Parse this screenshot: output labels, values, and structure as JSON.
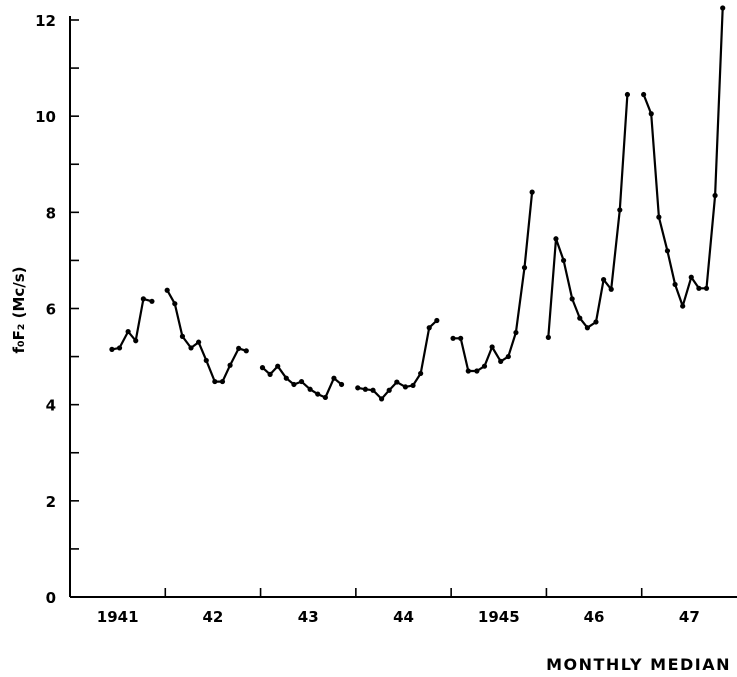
{
  "chart_data": {
    "type": "line",
    "title": "",
    "ylabel": "f₀F₂ (Mc/s)",
    "xlabel": "MONTHLY MEDIAN",
    "ylim": [
      0,
      12
    ],
    "yticks": [
      0,
      2,
      4,
      6,
      8,
      10,
      12
    ],
    "y_minor_ticks": [
      1,
      3,
      5,
      7,
      9,
      11
    ],
    "x_tick_labels": [
      "1941",
      "42",
      "43",
      "44",
      "1945",
      "46",
      "47"
    ],
    "x_tick_values": [
      1941,
      1942,
      1943,
      1944,
      1945,
      1946,
      1947
    ],
    "x_year_boundaries": [
      1941.5,
      1942.5,
      1943.5,
      1944.5,
      1945.5,
      1946.5
    ],
    "xlim": [
      1940.5,
      1947.5
    ],
    "grid": false,
    "series": [
      {
        "segments": [
          {
            "x": [
              1940.94,
              1941.02,
              1941.11,
              1941.19,
              1941.27,
              1941.36
            ],
            "y": [
              5.15,
              5.18,
              5.52,
              5.33,
              6.2,
              6.15
            ]
          },
          {
            "x": [
              1941.52,
              1941.6,
              1941.68,
              1941.77,
              1941.85,
              1941.93,
              1942.02,
              1942.1,
              1942.18,
              1942.27,
              1942.35
            ],
            "y": [
              6.38,
              6.1,
              5.42,
              5.18,
              5.3,
              4.92,
              4.48,
              4.48,
              4.82,
              5.17,
              5.12
            ]
          },
          {
            "x": [
              1942.52,
              1942.6,
              1942.68,
              1942.77,
              1942.85,
              1942.93,
              1943.02,
              1943.1,
              1943.18,
              1943.27,
              1943.35
            ],
            "y": [
              4.77,
              4.63,
              4.8,
              4.55,
              4.42,
              4.48,
              4.32,
              4.22,
              4.15,
              4.55,
              4.42
            ]
          },
          {
            "x": [
              1943.52,
              1943.6,
              1943.68,
              1943.77,
              1943.85,
              1943.93,
              1944.02,
              1944.1,
              1944.18,
              1944.27,
              1944.35
            ],
            "y": [
              4.35,
              4.32,
              4.3,
              4.12,
              4.3,
              4.47,
              4.37,
              4.4,
              4.65,
              5.6,
              5.75
            ]
          },
          {
            "x": [
              1944.52,
              1944.6,
              1944.68,
              1944.77,
              1944.85,
              1944.93,
              1945.02,
              1945.1,
              1945.18,
              1945.27,
              1945.35
            ],
            "y": [
              5.38,
              5.38,
              4.7,
              4.7,
              4.8,
              5.2,
              4.9,
              5.0,
              5.5,
              6.85,
              8.42
            ]
          },
          {
            "x": [
              1945.52,
              1945.6,
              1945.68,
              1945.77,
              1945.85,
              1945.93,
              1946.02,
              1946.1,
              1946.18,
              1946.27,
              1946.35
            ],
            "y": [
              5.4,
              7.45,
              7.0,
              6.2,
              5.8,
              5.6,
              5.72,
              6.6,
              6.4,
              8.05,
              10.45
            ]
          },
          {
            "x": [
              1946.52,
              1946.6,
              1946.68,
              1946.77,
              1946.85,
              1946.93,
              1947.02,
              1947.1,
              1947.18,
              1947.27,
              1947.35
            ],
            "y": [
              10.45,
              10.05,
              7.9,
              7.2,
              6.5,
              6.05,
              6.65,
              6.42,
              6.42,
              8.35,
              12.25
            ]
          }
        ]
      }
    ]
  }
}
